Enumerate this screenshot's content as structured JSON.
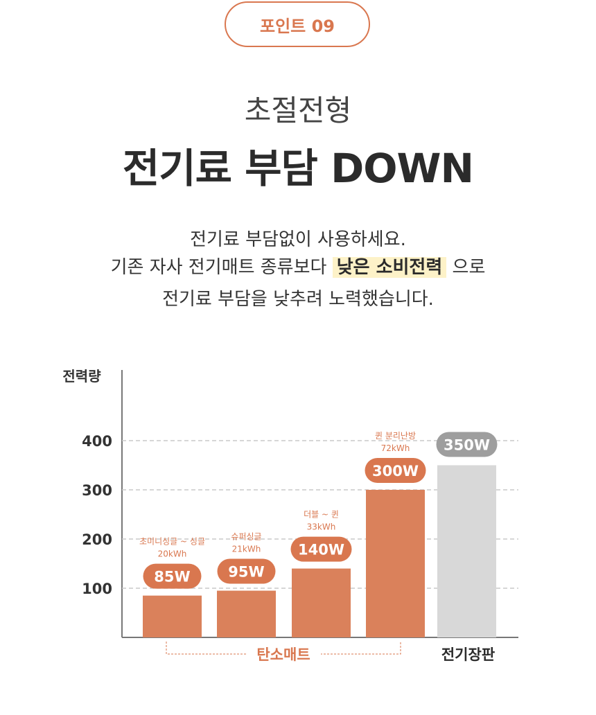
{
  "header": {
    "badge_label": "포인트 09",
    "subtitle": "초절전형",
    "headline": "전기료 부담 DOWN"
  },
  "description": {
    "line1": "전기료 부담없이 사용하세요.",
    "line2_before": "기존 자사 전기매트 종류보다",
    "line2_highlight": "낮은 소비전력",
    "line2_after": "으로",
    "line3": "전기료 부담을 낮추려 노력했습니다."
  },
  "colors": {
    "accent": "#d9774f",
    "bar_main": "#da815b",
    "bar_gray": "#d8d8d8",
    "label_gray": "#9e9e9e"
  },
  "chart_data": {
    "type": "bar",
    "ylabel": "전력량",
    "ylim": [
      0,
      400
    ],
    "yticks": [
      100,
      200,
      300,
      400
    ],
    "grid": "dashed-horizontal",
    "bars": [
      {
        "value": 85,
        "label": "85W",
        "product": "초미니싱글 ~ 싱글",
        "energy": "20kWh",
        "group": "carbon"
      },
      {
        "value": 95,
        "label": "95W",
        "product": "슈퍼싱글",
        "energy": "21kWh",
        "group": "carbon"
      },
      {
        "value": 140,
        "label": "140W",
        "product": "더블 ~ 퀸",
        "energy": "33kWh",
        "group": "carbon"
      },
      {
        "value": 300,
        "label": "300W",
        "product": "퀸 분리난방",
        "energy": "72kWh",
        "group": "carbon"
      },
      {
        "value": 350,
        "label": "350W",
        "product": "",
        "energy": "",
        "group": "electric"
      }
    ],
    "group_labels": {
      "carbon": "탄소매트",
      "electric": "전기장판"
    }
  }
}
